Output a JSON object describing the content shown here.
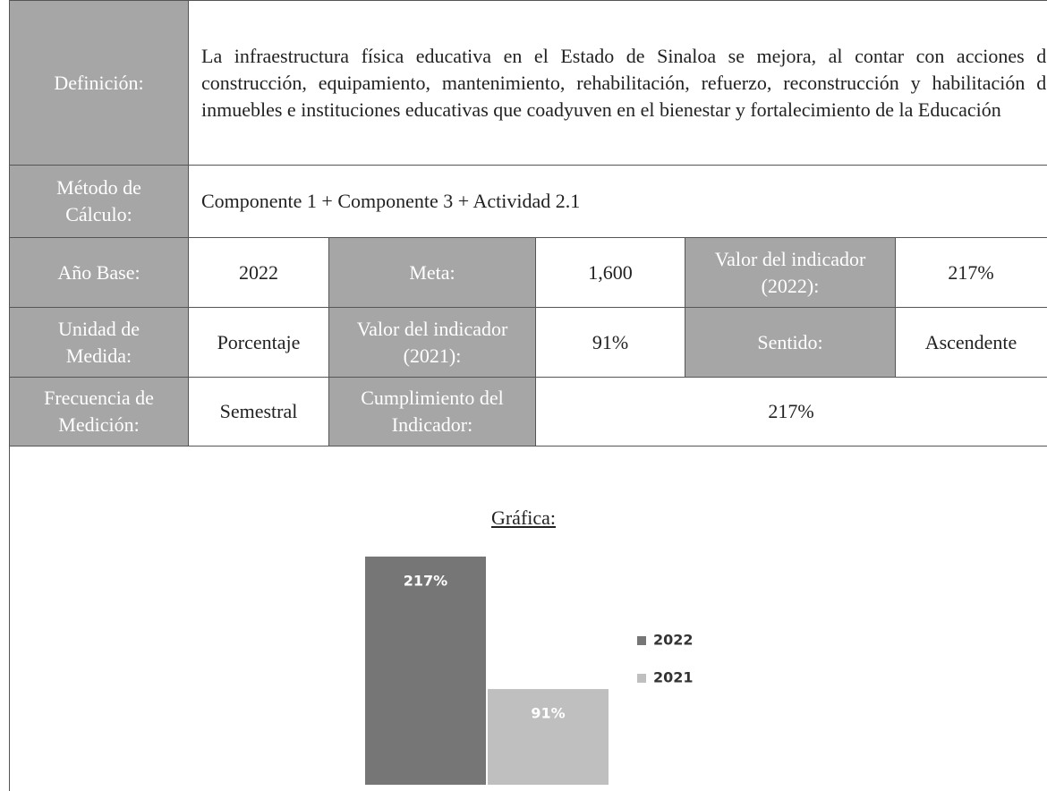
{
  "table": {
    "rows": [
      [
        "Definición:",
        "La infraestructura física educativa en el Estado de Sinaloa se mejora, al contar con acciones de construcción, equipamiento, mantenimiento, rehabilitación, refuerzo, reconstrucción y habilitación de inmuebles e instituciones educativas que coadyuven en el bienestar y fortalecimiento de la Educación"
      ],
      [
        "Método de Cálculo:",
        "Componente 1 + Componente 3 + Actividad 2.1"
      ],
      [
        "Año Base:",
        "2022",
        "Meta:",
        "1,600",
        "Valor del indicador (2022):",
        "217%"
      ],
      [
        "Unidad de Medida:",
        "Porcentaje",
        "Valor del indicador (2021):",
        "91%",
        "Sentido:",
        "Ascendente"
      ],
      [
        "Frecuencia de Medición:",
        "Semestral",
        "Cumplimiento del Indicador:",
        "217%"
      ]
    ]
  },
  "chart_data": {
    "type": "bar",
    "title": "Gráfica:",
    "series": [
      {
        "name": "2022",
        "color": "#767676",
        "values": [
          217
        ],
        "value_labels": [
          "217%"
        ]
      },
      {
        "name": "2021",
        "color": "#bfbfbf",
        "values": [
          91
        ],
        "value_labels": [
          "91%"
        ]
      }
    ]
  }
}
